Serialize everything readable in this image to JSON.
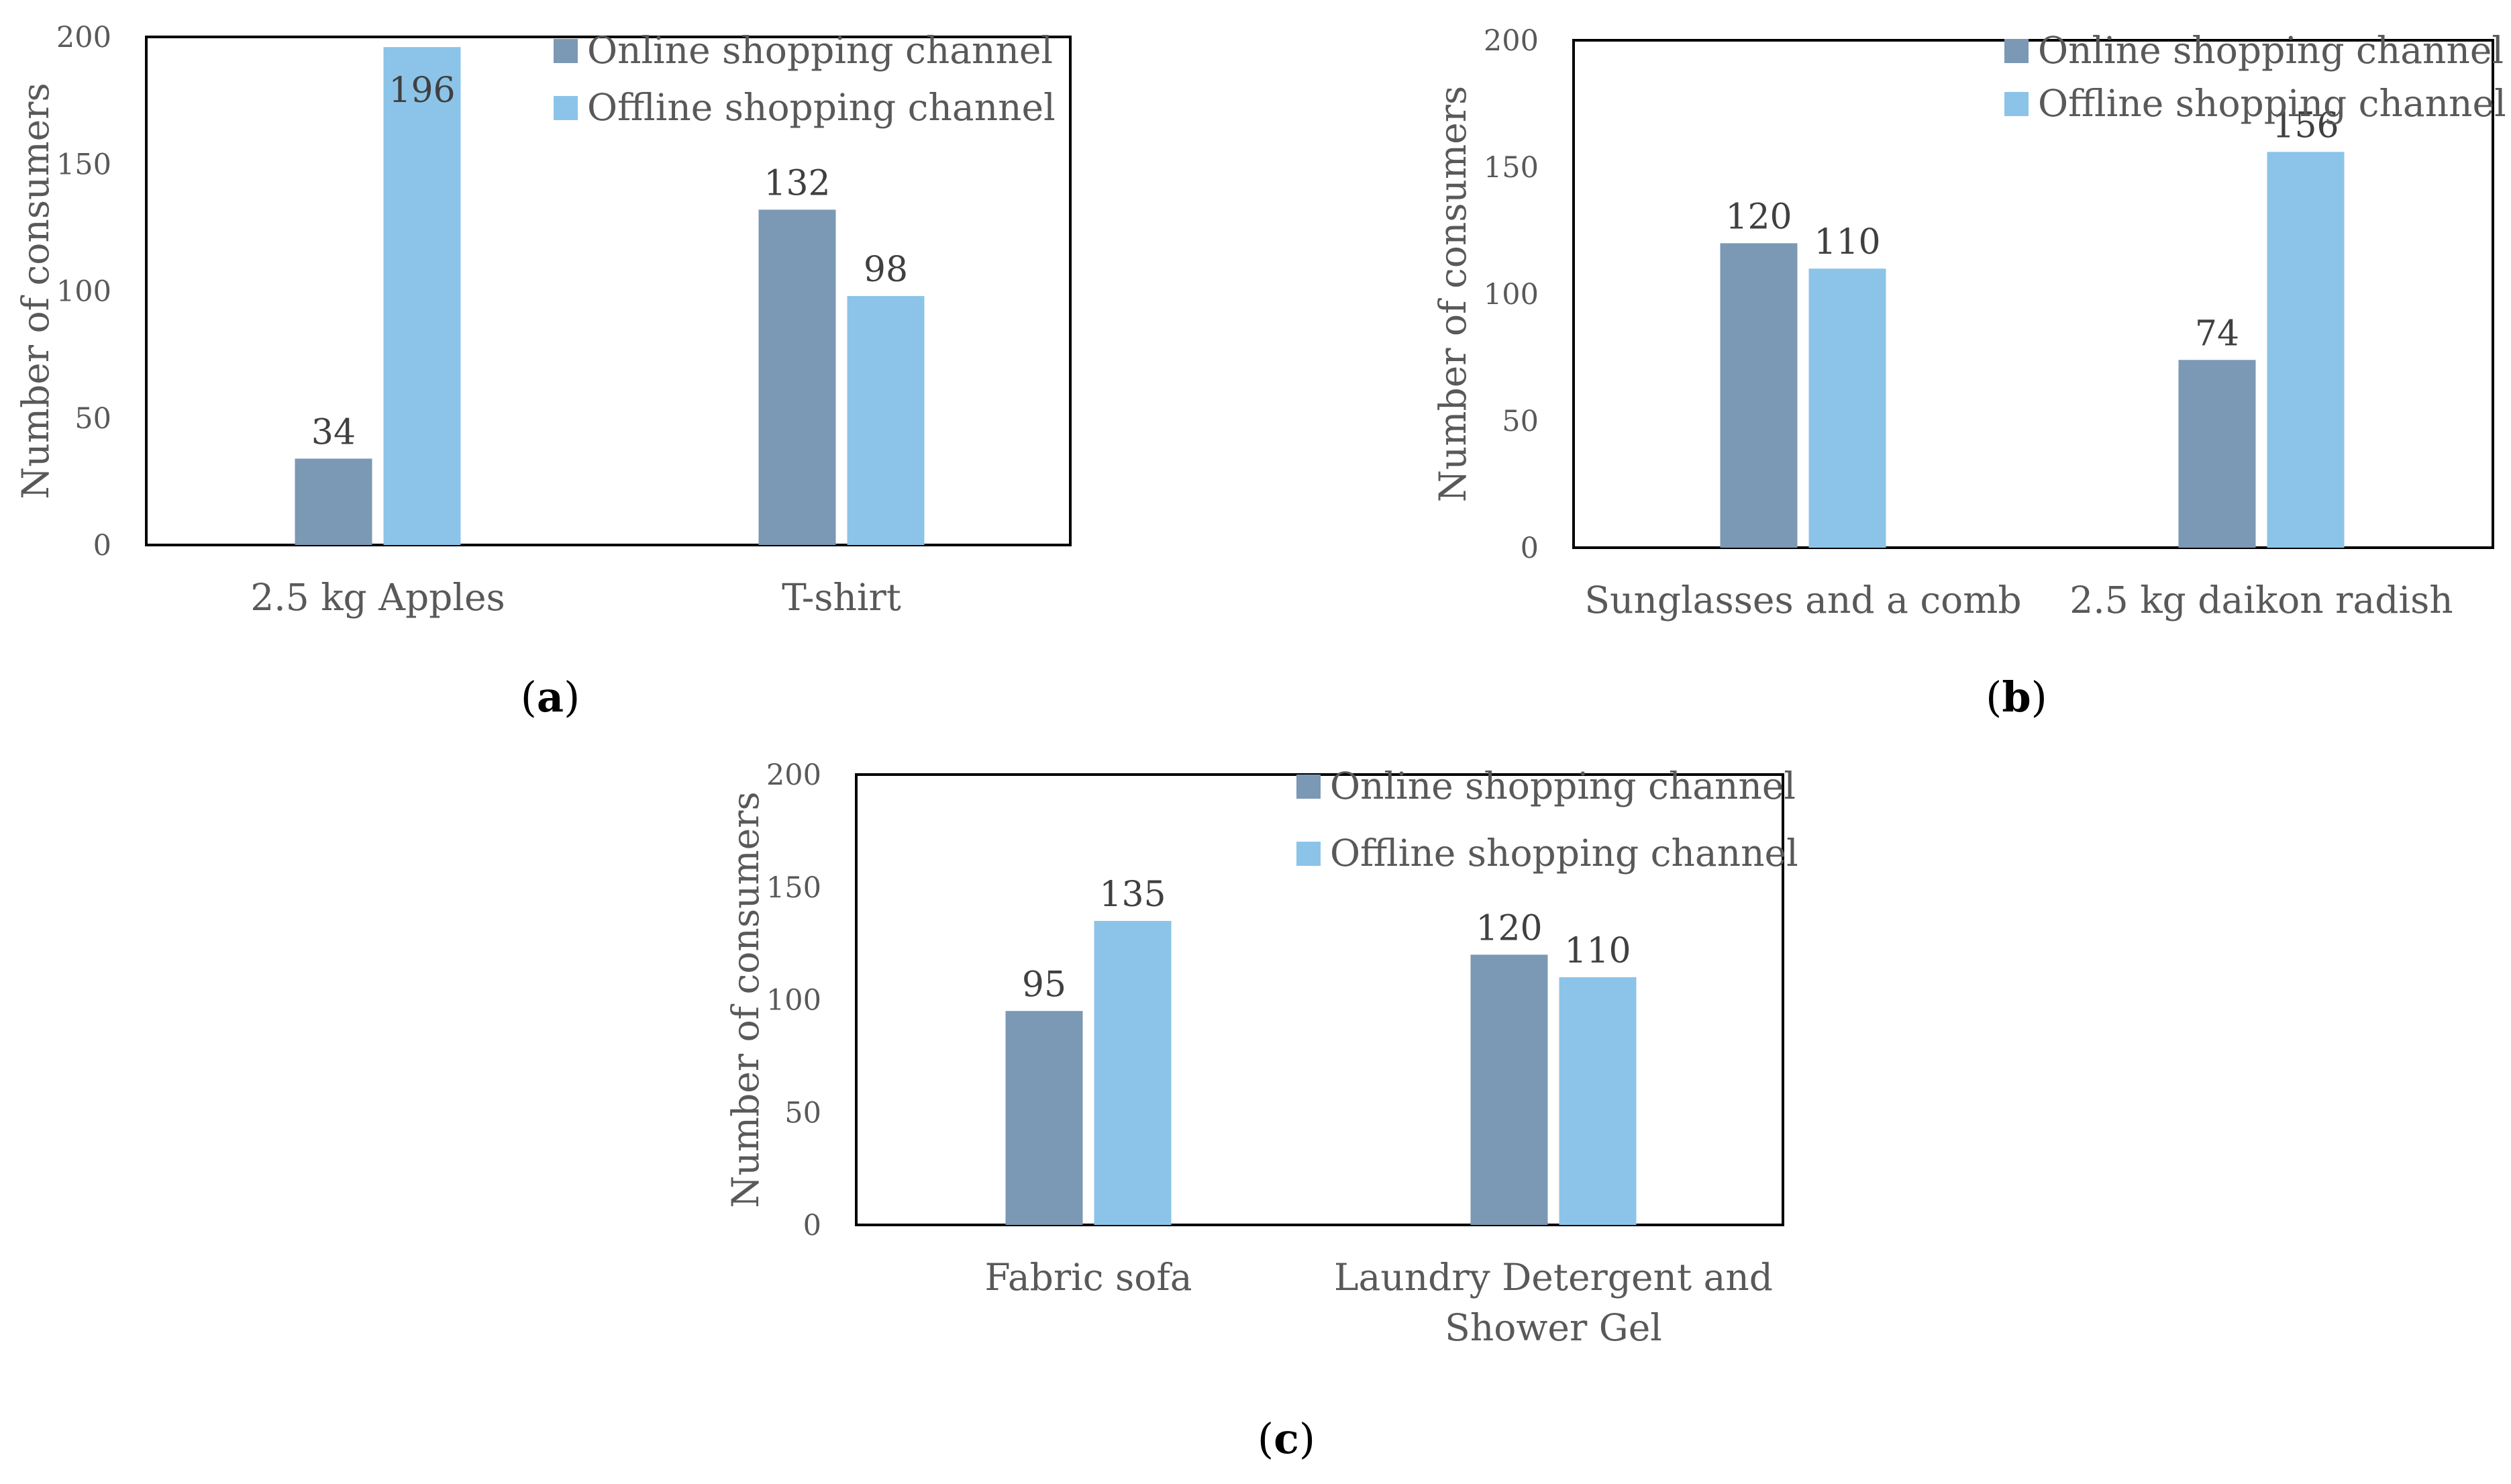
{
  "colors": {
    "online": "#7B98B4",
    "offline": "#8BC4E8",
    "axis": "#000000"
  },
  "chart_data": [
    {
      "type": "bar",
      "panel": "a",
      "caption": {
        "open": "(",
        "letter": "a",
        "close": ")"
      },
      "ylabel": "Number of consumers",
      "ylim": [
        0,
        200
      ],
      "yticks": [
        "0",
        "50",
        "100",
        "150",
        "200"
      ],
      "categories": [
        [
          "2.5 kg Apples"
        ],
        [
          "T-shirt"
        ]
      ],
      "series": [
        {
          "name": "Online shopping channel",
          "values": [
            34,
            132
          ]
        },
        {
          "name": "Offline shopping channel",
          "values": [
            196,
            98
          ]
        }
      ],
      "legend": "top-right"
    },
    {
      "type": "bar",
      "panel": "b",
      "caption": {
        "open": "(",
        "letter": "b",
        "close": ")"
      },
      "ylabel": "Number of consumers",
      "ylim": [
        0,
        200
      ],
      "yticks": [
        "0",
        "50",
        "100",
        "150",
        "200"
      ],
      "categories": [
        [
          "Sunglasses and a comb"
        ],
        [
          "2.5 kg daikon radish"
        ]
      ],
      "series": [
        {
          "name": "Online shopping channel",
          "values": [
            120,
            74
          ]
        },
        {
          "name": "Offline shopping channel",
          "values": [
            110,
            156
          ]
        }
      ],
      "legend": "top-right"
    },
    {
      "type": "bar",
      "panel": "c",
      "caption": {
        "open": "(",
        "letter": "c",
        "close": ")"
      },
      "ylabel": "Number of consumers",
      "ylim": [
        0,
        200
      ],
      "yticks": [
        "0",
        "50",
        "100",
        "150",
        "200"
      ],
      "categories": [
        [
          "Fabric sofa"
        ],
        [
          "Laundry Detergent and",
          "Shower Gel"
        ]
      ],
      "series": [
        {
          "name": "Online shopping channel",
          "values": [
            95,
            120
          ]
        },
        {
          "name": "Offline shopping channel",
          "values": [
            135,
            110
          ]
        }
      ],
      "legend": "top-right"
    }
  ]
}
